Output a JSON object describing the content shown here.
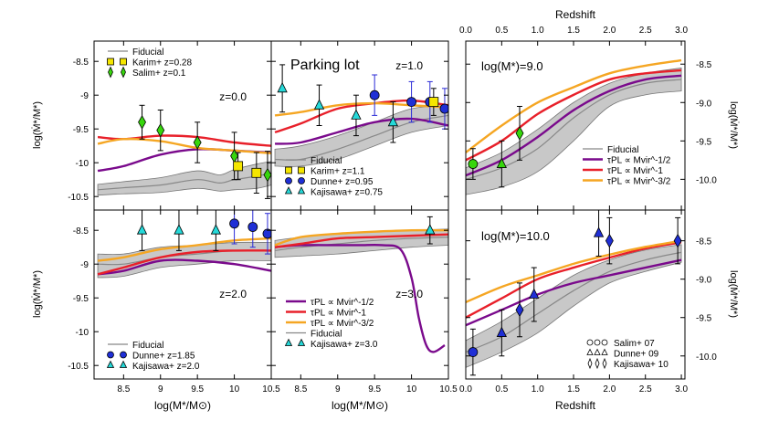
{
  "colors": {
    "fiducial": "#888888",
    "band": "#c8c8c8",
    "purple": "#7a0a8c",
    "red": "#e8202a",
    "orange": "#f5a623",
    "karim": "#f5e600",
    "salim": "#37d60d",
    "dunne": "#1f2fd6",
    "kajisawa": "#25d9d9",
    "errblack": "#000000",
    "errblue": "#2a2ad6"
  },
  "left_panels": {
    "xlabel": "log(M*/M⊙)",
    "ylabel": "log(Ṁ*/M*)",
    "xlim": [
      8.1,
      10.5
    ],
    "ylim": [
      -10.7,
      -8.2
    ],
    "xticks": [
      "8.5",
      "9",
      "9.5",
      "10",
      "10.5"
    ],
    "yticks": [
      "-8.5",
      "-9",
      "-9.5",
      "-10",
      "-10.5"
    ],
    "panels": [
      {
        "id": "z0",
        "label": "z=0.0",
        "legend": [
          "Fiducial",
          "Karim+ z=0.28",
          "Salim+ z=0.1"
        ],
        "fiducial": {
          "x": [
            8.15,
            8.5,
            9.0,
            9.5,
            9.8,
            10.0,
            10.3,
            10.5
          ],
          "y": [
            -10.4,
            -10.37,
            -10.33,
            -10.25,
            -10.3,
            -10.25,
            -10.2,
            -10.15
          ]
        },
        "band_hi": [
          -10.32,
          -10.28,
          -10.22,
          -10.12,
          -10.18,
          -10.1,
          -10.02,
          -9.98
        ],
        "band_lo": [
          -10.48,
          -10.46,
          -10.44,
          -10.38,
          -10.42,
          -10.4,
          -10.38,
          -10.33
        ],
        "purple": {
          "x": [
            8.15,
            8.5,
            9.0,
            9.5,
            10.0,
            10.5
          ],
          "y": [
            -10.12,
            -10.05,
            -9.88,
            -9.8,
            -9.82,
            -9.85
          ]
        },
        "red": {
          "x": [
            8.15,
            8.5,
            9.0,
            9.5,
            10.0,
            10.5
          ],
          "y": [
            -9.62,
            -9.65,
            -9.6,
            -9.62,
            -9.7,
            -9.75
          ]
        },
        "orange": {
          "x": [
            8.15,
            8.5,
            9.0,
            9.5,
            10.0,
            10.5
          ],
          "y": [
            -9.72,
            -9.65,
            -9.68,
            -9.78,
            -9.82,
            -9.86
          ]
        },
        "points": [
          {
            "s": "diamond",
            "c": "salim",
            "x": 8.75,
            "y": -9.4,
            "e": 0.25
          },
          {
            "s": "diamond",
            "c": "salim",
            "x": 9.0,
            "y": -9.52,
            "e": 0.3
          },
          {
            "s": "diamond",
            "c": "salim",
            "x": 9.5,
            "y": -9.7,
            "e": 0.3
          },
          {
            "s": "diamond",
            "c": "salim",
            "x": 10.0,
            "y": -9.9,
            "e": 0.35
          },
          {
            "s": "diamond",
            "c": "salim",
            "x": 10.45,
            "y": -10.18,
            "e": 0.35
          },
          {
            "s": "square",
            "c": "karim",
            "x": 10.3,
            "y": -10.15,
            "e": 0.3
          },
          {
            "s": "square",
            "c": "karim",
            "x": 10.05,
            "y": -10.05,
            "e": 0.2
          }
        ]
      },
      {
        "id": "z1",
        "label": "z=1.0",
        "title": "Parking lot",
        "legend": [
          "Fiducial",
          "Karim+ z=1.1",
          "Dunne+ z=0.95",
          "Kajisawa+ z=0.75"
        ],
        "fiducial": {
          "x": [
            8.15,
            8.5,
            9.0,
            9.5,
            10.0,
            10.5
          ],
          "y": [
            -9.95,
            -9.95,
            -9.8,
            -9.6,
            -9.4,
            -9.3
          ]
        },
        "band_hi": [
          -9.8,
          -9.75,
          -9.6,
          -9.4,
          -9.2,
          -9.15
        ],
        "band_lo": [
          -10.05,
          -10.05,
          -9.95,
          -9.75,
          -9.55,
          -9.45
        ],
        "purple": {
          "x": [
            8.15,
            8.5,
            9.0,
            9.5,
            10.0,
            10.5
          ],
          "y": [
            -9.72,
            -9.7,
            -9.55,
            -9.4,
            -9.35,
            -9.45
          ]
        },
        "red": {
          "x": [
            8.15,
            8.5,
            9.0,
            9.5,
            10.0,
            10.5
          ],
          "y": [
            -9.55,
            -9.42,
            -9.2,
            -9.12,
            -9.08,
            -9.15
          ]
        },
        "orange": {
          "x": [
            8.15,
            8.5,
            9.0,
            9.5,
            10.0,
            10.5
          ],
          "y": [
            -9.3,
            -9.25,
            -9.15,
            -9.12,
            -9.15,
            -9.18
          ]
        },
        "points": [
          {
            "s": "triangle",
            "c": "kajisawa",
            "x": 8.25,
            "y": -8.9,
            "e": 0.35
          },
          {
            "s": "triangle",
            "c": "kajisawa",
            "x": 8.75,
            "y": -9.15,
            "e": 0.3
          },
          {
            "s": "triangle",
            "c": "kajisawa",
            "x": 9.25,
            "y": -9.3,
            "e": 0.3
          },
          {
            "s": "triangle",
            "c": "kajisawa",
            "x": 9.75,
            "y": -9.4,
            "e": 0.3
          },
          {
            "s": "circle",
            "c": "dunne",
            "x": 9.5,
            "y": -9.0,
            "e": 0.3,
            "blue": true
          },
          {
            "s": "circle",
            "c": "dunne",
            "x": 10.0,
            "y": -9.1,
            "e": 0.3,
            "blue": true
          },
          {
            "s": "circle",
            "c": "dunne",
            "x": 10.25,
            "y": -9.1,
            "e": 0.3,
            "blue": true
          },
          {
            "s": "circle",
            "c": "dunne",
            "x": 10.45,
            "y": -9.2,
            "e": 0.3,
            "blue": true
          },
          {
            "s": "square",
            "c": "karim",
            "x": 10.3,
            "y": -9.1,
            "e": 0.2
          }
        ]
      },
      {
        "id": "z2",
        "label": "z=2.0",
        "legend": [
          "Fiducial",
          "Dunne+ z=1.85",
          "Kajisawa+ z=2.0"
        ],
        "fiducial": {
          "x": [
            8.15,
            8.5,
            9.0,
            9.5,
            10.0,
            10.5
          ],
          "y": [
            -9.0,
            -9.0,
            -8.9,
            -8.85,
            -8.8,
            -8.8
          ]
        },
        "band_hi": [
          -8.85,
          -8.85,
          -8.75,
          -8.72,
          -8.68,
          -8.68
        ],
        "band_lo": [
          -9.2,
          -9.18,
          -9.05,
          -9.0,
          -8.95,
          -8.95
        ],
        "purple": {
          "x": [
            8.15,
            8.5,
            9.0,
            9.5,
            10.0,
            10.5
          ],
          "y": [
            -9.15,
            -9.1,
            -8.95,
            -8.95,
            -9.0,
            -9.1
          ]
        },
        "red": {
          "x": [
            8.15,
            8.5,
            9.0,
            9.5,
            10.0,
            10.5
          ],
          "y": [
            -9.15,
            -9.05,
            -8.9,
            -8.82,
            -8.8,
            -8.8
          ]
        },
        "orange": {
          "x": [
            8.15,
            8.5,
            9.0,
            9.5,
            10.0,
            10.5
          ],
          "y": [
            -8.95,
            -8.9,
            -8.78,
            -8.72,
            -8.65,
            -8.62
          ]
        },
        "points": [
          {
            "s": "triangle",
            "c": "kajisawa",
            "x": 8.75,
            "y": -8.5,
            "e": 0.3
          },
          {
            "s": "triangle",
            "c": "kajisawa",
            "x": 9.25,
            "y": -8.5,
            "e": 0.3
          },
          {
            "s": "triangle",
            "c": "kajisawa",
            "x": 9.75,
            "y": -8.5,
            "e": 0.3
          },
          {
            "s": "circle",
            "c": "dunne",
            "x": 10.0,
            "y": -8.4,
            "e": 0.3,
            "blue": true
          },
          {
            "s": "circle",
            "c": "dunne",
            "x": 10.25,
            "y": -8.45,
            "e": 0.3,
            "blue": true
          },
          {
            "s": "circle",
            "c": "dunne",
            "x": 10.45,
            "y": -8.55,
            "e": 0.3,
            "blue": true
          }
        ]
      },
      {
        "id": "z3",
        "label": "z=3.0",
        "legend": [
          "τPL ∝ Mvir^-1/2",
          "τPL ∝ Mvir^-1",
          "τPL ∝ Mvir^-3/2",
          "Fiducial",
          "Kajisawa+ z=3.0"
        ],
        "fiducial": {
          "x": [
            8.15,
            8.5,
            9.0,
            9.5,
            10.0,
            10.5
          ],
          "y": [
            -8.8,
            -8.75,
            -8.7,
            -8.65,
            -8.62,
            -8.6
          ]
        },
        "band_hi": [
          -8.65,
          -8.6,
          -8.55,
          -8.52,
          -8.5,
          -8.48
        ],
        "band_lo": [
          -8.9,
          -8.88,
          -8.85,
          -8.8,
          -8.75,
          -8.72
        ],
        "purple": {
          "x": [
            8.15,
            8.5,
            9.0,
            9.3,
            9.6,
            9.85,
            10.0,
            10.1,
            10.2,
            10.3,
            10.45
          ],
          "y": [
            -8.75,
            -8.72,
            -8.72,
            -8.72,
            -8.72,
            -8.78,
            -9.2,
            -9.8,
            -10.2,
            -10.3,
            -10.2
          ]
        },
        "red": {
          "x": [
            8.15,
            8.5,
            9.0,
            9.5,
            10.0,
            10.5
          ],
          "y": [
            -8.75,
            -8.7,
            -8.62,
            -8.6,
            -8.58,
            -8.56
          ]
        },
        "orange": {
          "x": [
            8.15,
            8.5,
            9.0,
            9.5,
            10.0,
            10.5
          ],
          "y": [
            -8.72,
            -8.6,
            -8.55,
            -8.52,
            -8.5,
            -8.5
          ]
        },
        "points": [
          {
            "s": "triangle",
            "c": "kajisawa",
            "x": 10.25,
            "y": -8.5,
            "e": 0.2
          }
        ]
      }
    ]
  },
  "right_panels": {
    "top_xlabel": "Redshift",
    "bottom_xlabel": "Redshift",
    "ylabel": "log(Ṁ*/M*)",
    "xlim": [
      0,
      3.05
    ],
    "xticks": [
      "0.0",
      "0.5",
      "1.0",
      "1.5",
      "2.0",
      "2.5",
      "3.0"
    ],
    "panels": [
      {
        "id": "m9",
        "label": "log(M*)=9.0",
        "ylim": [
          -10.4,
          -8.2
        ],
        "yticks": [
          "-8.5",
          "-9.0",
          "-9.5",
          "-10.0"
        ],
        "legend": [
          "Fiducial",
          "τPL ∝ Mvir^-1/2",
          "τPL ∝ Mvir^-1",
          "τPL ∝ Mvir^-3/2"
        ],
        "fiducial": {
          "x": [
            0,
            0.5,
            1.0,
            1.5,
            2.0,
            2.5,
            3.0
          ],
          "y": [
            -10.0,
            -9.85,
            -9.6,
            -9.2,
            -8.9,
            -8.75,
            -8.7
          ]
        },
        "band_hi": [
          -9.85,
          -9.65,
          -9.35,
          -9.0,
          -8.75,
          -8.62,
          -8.55
        ],
        "band_lo": [
          -10.2,
          -10.1,
          -9.9,
          -9.5,
          -9.05,
          -8.9,
          -8.85
        ],
        "purple": {
          "x": [
            0,
            0.5,
            1.0,
            1.5,
            2.0,
            2.5,
            3.0
          ],
          "y": [
            -9.95,
            -9.75,
            -9.45,
            -9.1,
            -8.85,
            -8.7,
            -8.65
          ]
        },
        "red": {
          "x": [
            0,
            0.5,
            1.0,
            1.5,
            2.0,
            2.5,
            3.0
          ],
          "y": [
            -9.75,
            -9.5,
            -9.15,
            -8.9,
            -8.7,
            -8.62,
            -8.58
          ]
        },
        "orange": {
          "x": [
            0,
            0.5,
            1.0,
            1.5,
            2.0,
            2.5,
            3.0
          ],
          "y": [
            -9.65,
            -9.3,
            -9.0,
            -8.8,
            -8.62,
            -8.52,
            -8.45
          ]
        },
        "points": [
          {
            "s": "circle",
            "c": "salim",
            "x": 0.1,
            "y": -9.8,
            "e": 0.2
          },
          {
            "s": "triangle",
            "c": "salim",
            "x": 0.5,
            "y": -9.8,
            "e": 0.3
          },
          {
            "s": "diamond",
            "c": "salim",
            "x": 0.75,
            "y": -9.4,
            "e": 0.35
          }
        ]
      },
      {
        "id": "m10",
        "label": "log(M*)=10.0",
        "ylim": [
          -10.3,
          -8.1
        ],
        "yticks": [
          "-8.5",
          "-9.0",
          "-9.5",
          "-10.0"
        ],
        "legend": [
          "Salim+ 07",
          "Dunne+ 09",
          "Kajisawa+ 10"
        ],
        "fiducial": {
          "x": [
            0,
            0.5,
            1.0,
            1.5,
            2.0,
            2.5,
            3.0
          ],
          "y": [
            -9.95,
            -9.75,
            -9.45,
            -9.15,
            -8.9,
            -8.75,
            -8.65
          ]
        },
        "band_hi": [
          -9.8,
          -9.55,
          -9.25,
          -8.95,
          -8.75,
          -8.62,
          -8.55
        ],
        "band_lo": [
          -10.15,
          -9.95,
          -9.7,
          -9.35,
          -9.05,
          -8.9,
          -8.78
        ],
        "purple": {
          "x": [
            0,
            0.5,
            1.0,
            1.5,
            2.0,
            2.5,
            3.0
          ],
          "y": [
            -9.6,
            -9.4,
            -9.2,
            -9.05,
            -8.95,
            -8.85,
            -8.75
          ]
        },
        "red": {
          "x": [
            0,
            0.5,
            1.0,
            1.5,
            2.0,
            2.5,
            3.0
          ],
          "y": [
            -9.5,
            -9.25,
            -9.0,
            -8.85,
            -8.72,
            -8.6,
            -8.52
          ]
        },
        "orange": {
          "x": [
            0,
            0.5,
            1.0,
            1.5,
            2.0,
            2.5,
            3.0
          ],
          "y": [
            -9.3,
            -9.1,
            -8.95,
            -8.8,
            -8.68,
            -8.58,
            -8.5
          ]
        },
        "points": [
          {
            "s": "circle",
            "c": "dunne",
            "x": 0.1,
            "y": -9.95,
            "e": 0.3
          },
          {
            "s": "triangle",
            "c": "dunne",
            "x": 0.5,
            "y": -9.7,
            "e": 0.3
          },
          {
            "s": "diamond",
            "c": "dunne",
            "x": 0.75,
            "y": -9.4,
            "e": 0.35
          },
          {
            "s": "triangle",
            "c": "dunne",
            "x": 0.95,
            "y": -9.2,
            "e": 0.35
          },
          {
            "s": "triangle",
            "c": "dunne",
            "x": 1.85,
            "y": -8.4,
            "e": 0.3
          },
          {
            "s": "diamond",
            "c": "dunne",
            "x": 2.0,
            "y": -8.5,
            "e": 0.3
          },
          {
            "s": "diamond",
            "c": "dunne",
            "x": 2.95,
            "y": -8.5,
            "e": 0.3
          }
        ]
      }
    ]
  },
  "chart_data": {
    "type": "line",
    "title": "Parking lot",
    "xlabel": "log(M*/M⊙) / Redshift",
    "ylabel": "log(Ṁ*/M*)"
  }
}
